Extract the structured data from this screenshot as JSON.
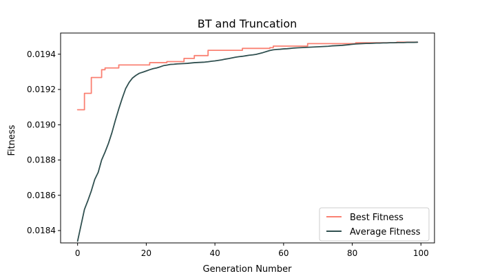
{
  "chart_data": {
    "type": "line",
    "title": "BT and Truncation",
    "xlabel": "Generation Number",
    "ylabel": "Fitness",
    "xlim": [
      -4.95,
      103.95
    ],
    "ylim": [
      0.01833,
      0.01952
    ],
    "xticks": [
      0,
      20,
      40,
      60,
      80,
      100
    ],
    "xtick_labels": [
      "0",
      "20",
      "40",
      "60",
      "80",
      "100"
    ],
    "yticks": [
      0.0184,
      0.0186,
      0.0188,
      0.019,
      0.0192,
      0.0194
    ],
    "ytick_labels": [
      "0.0184",
      "0.0186",
      "0.0188",
      "0.0190",
      "0.0192",
      "0.0194"
    ],
    "grid": false,
    "legend": {
      "position": "lower right",
      "entries": [
        "Best Fitness",
        "Average Fitness"
      ]
    },
    "x": [
      0,
      1,
      2,
      3,
      4,
      5,
      6,
      7,
      8,
      9,
      10,
      11,
      12,
      13,
      14,
      15,
      16,
      17,
      18,
      19,
      20,
      21,
      22,
      23,
      24,
      25,
      26,
      27,
      28,
      29,
      30,
      31,
      32,
      33,
      34,
      35,
      36,
      37,
      38,
      39,
      40,
      41,
      42,
      43,
      44,
      45,
      46,
      47,
      48,
      49,
      50,
      51,
      52,
      53,
      54,
      55,
      56,
      57,
      58,
      59,
      60,
      61,
      62,
      63,
      64,
      65,
      66,
      67,
      68,
      69,
      70,
      71,
      72,
      73,
      74,
      75,
      76,
      77,
      78,
      79,
      80,
      81,
      82,
      83,
      84,
      85,
      86,
      87,
      88,
      89,
      90,
      91,
      92,
      93,
      94,
      95,
      96,
      97,
      98,
      99
    ],
    "series": [
      {
        "name": "Best Fitness",
        "color": "#fa8072",
        "values": [
          0.019085,
          0.019085,
          0.019178,
          0.019178,
          0.019268,
          0.019268,
          0.019268,
          0.019312,
          0.019322,
          0.019322,
          0.019322,
          0.019322,
          0.019339,
          0.019339,
          0.019339,
          0.019339,
          0.019339,
          0.019339,
          0.019339,
          0.019339,
          0.019339,
          0.019352,
          0.019352,
          0.019352,
          0.019352,
          0.019352,
          0.019358,
          0.019358,
          0.019358,
          0.019358,
          0.019358,
          0.019376,
          0.019376,
          0.019376,
          0.019392,
          0.019392,
          0.019392,
          0.019392,
          0.019422,
          0.019422,
          0.019422,
          0.019422,
          0.019422,
          0.019422,
          0.019422,
          0.019422,
          0.019422,
          0.019422,
          0.019433,
          0.019433,
          0.019433,
          0.019433,
          0.019433,
          0.019433,
          0.019433,
          0.019433,
          0.019437,
          0.019446,
          0.019446,
          0.019446,
          0.019446,
          0.019446,
          0.019446,
          0.019446,
          0.019446,
          0.019446,
          0.019446,
          0.01946,
          0.01946,
          0.01946,
          0.01946,
          0.01946,
          0.01946,
          0.01946,
          0.01946,
          0.01946,
          0.01946,
          0.01946,
          0.01946,
          0.01946,
          0.01946,
          0.019465,
          0.019465,
          0.019465,
          0.019465,
          0.019465,
          0.019465,
          0.019465,
          0.019465,
          0.019465,
          0.019465,
          0.019465,
          0.019465,
          0.019468,
          0.019468,
          0.019468,
          0.019468,
          0.019468,
          0.019468,
          0.019468
        ]
      },
      {
        "name": "Average Fitness",
        "color": "#2f4f4f",
        "values": [
          0.01834,
          0.01843,
          0.01852,
          0.01857,
          0.018625,
          0.01869,
          0.01873,
          0.0188,
          0.018845,
          0.018895,
          0.018955,
          0.019025,
          0.01909,
          0.01915,
          0.019205,
          0.01924,
          0.019265,
          0.01928,
          0.019292,
          0.019298,
          0.019305,
          0.019312,
          0.019318,
          0.019322,
          0.019328,
          0.019335,
          0.019338,
          0.019342,
          0.019343,
          0.019345,
          0.019346,
          0.019347,
          0.019348,
          0.01935,
          0.019352,
          0.019353,
          0.019354,
          0.019355,
          0.019357,
          0.01936,
          0.019362,
          0.019365,
          0.019368,
          0.019372,
          0.019375,
          0.019379,
          0.019383,
          0.019386,
          0.019388,
          0.019391,
          0.019394,
          0.019396,
          0.019399,
          0.019404,
          0.019409,
          0.019415,
          0.019421,
          0.019425,
          0.019427,
          0.019428,
          0.01943,
          0.019431,
          0.019433,
          0.019435,
          0.019436,
          0.019437,
          0.019438,
          0.019439,
          0.01944,
          0.019441,
          0.019442,
          0.019443,
          0.019444,
          0.019445,
          0.019447,
          0.019448,
          0.019449,
          0.01945,
          0.019452,
          0.019454,
          0.019456,
          0.019458,
          0.019459,
          0.01946,
          0.019461,
          0.019461,
          0.019462,
          0.019463,
          0.019463,
          0.019464,
          0.019464,
          0.019465,
          0.019465,
          0.019466,
          0.019466,
          0.019466,
          0.019467,
          0.019467,
          0.019467,
          0.019468
        ]
      }
    ]
  }
}
